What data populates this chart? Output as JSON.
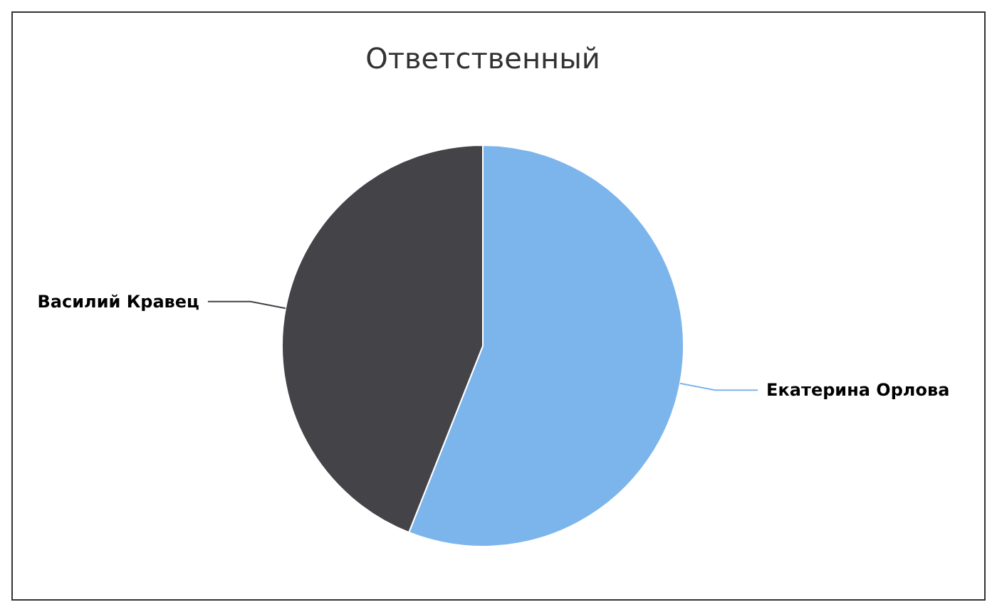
{
  "chart_data": {
    "type": "pie",
    "title": "Ответственный",
    "categories": [
      "Екатерина Орлова",
      "Василий Кравец"
    ],
    "values": [
      56,
      44
    ],
    "colors": [
      "#7cb5ec",
      "#434348"
    ]
  }
}
